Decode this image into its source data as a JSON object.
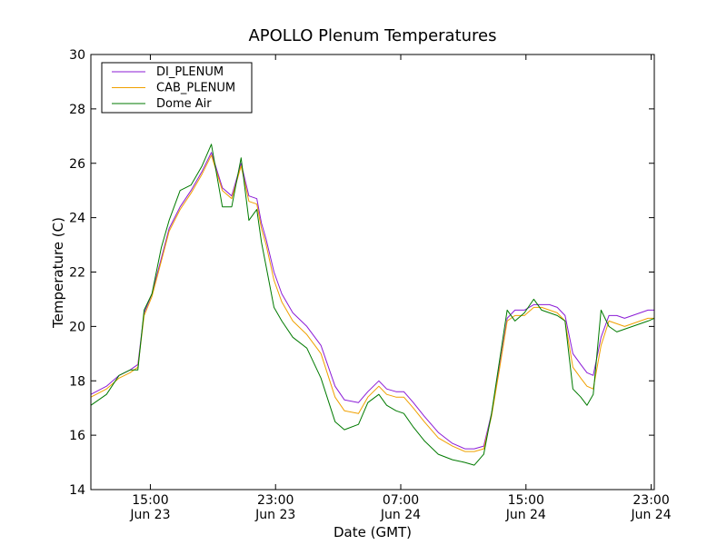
{
  "chart_data": {
    "type": "line",
    "title": "APOLLO Plenum Temperatures",
    "xlabel": "Date (GMT)",
    "ylabel": "Temperature (C)",
    "ylim": [
      14,
      30
    ],
    "xlim_hours": [
      11.2,
      47.2
    ],
    "yticks": [
      14,
      16,
      18,
      20,
      22,
      24,
      26,
      28,
      30
    ],
    "yticklabels": [
      "14",
      "16",
      "18",
      "20",
      "22",
      "24",
      "26",
      "28",
      "30"
    ],
    "xticks": [
      {
        "hour": 15,
        "time": "15:00",
        "date": "Jun 23"
      },
      {
        "hour": 23,
        "time": "23:00",
        "date": "Jun 23"
      },
      {
        "hour": 31,
        "time": "07:00",
        "date": "Jun 24"
      },
      {
        "hour": 39,
        "time": "15:00",
        "date": "Jun 24"
      },
      {
        "hour": 47,
        "time": "23:00",
        "date": "Jun 24"
      }
    ],
    "legend_position": "top-left",
    "series": [
      {
        "name": "DI_PLENUM",
        "color": "#8b1bd6",
        "x": [
          11.2,
          12.2,
          13.0,
          13.7,
          14.2,
          14.6,
          15.1,
          15.7,
          16.2,
          16.9,
          17.6,
          18.3,
          18.9,
          19.6,
          20.2,
          20.8,
          21.3,
          21.8,
          22.1,
          22.4,
          22.9,
          23.4,
          24.1,
          25.0,
          25.9,
          26.8,
          27.4,
          28.3,
          28.9,
          29.6,
          30.1,
          30.7,
          31.2,
          31.8,
          32.5,
          33.4,
          34.3,
          35.1,
          35.7,
          36.3,
          36.8,
          37.3,
          37.8,
          38.3,
          38.9,
          39.5,
          40.0,
          40.5,
          41.0,
          41.5,
          42.0,
          42.5,
          42.9,
          43.3,
          43.8,
          44.3,
          44.8,
          45.3,
          45.8,
          46.3,
          46.8,
          47.2
        ],
        "y": [
          17.5,
          17.8,
          18.2,
          18.4,
          18.6,
          20.5,
          21.2,
          22.5,
          23.6,
          24.4,
          25.0,
          25.7,
          26.4,
          25.1,
          24.8,
          26.0,
          24.8,
          24.7,
          23.8,
          23.2,
          22.0,
          21.2,
          20.5,
          20.0,
          19.3,
          17.8,
          17.3,
          17.2,
          17.6,
          18.0,
          17.7,
          17.6,
          17.6,
          17.2,
          16.7,
          16.1,
          15.7,
          15.5,
          15.5,
          15.6,
          16.8,
          18.5,
          20.3,
          20.6,
          20.6,
          20.8,
          20.8,
          20.8,
          20.7,
          20.4,
          19.0,
          18.6,
          18.3,
          18.2,
          19.6,
          20.4,
          20.4,
          20.3,
          20.4,
          20.5,
          20.6,
          20.6
        ]
      },
      {
        "name": "CAB_PLENUM",
        "color": "#f0a000",
        "x": [
          11.2,
          12.2,
          13.0,
          13.7,
          14.2,
          14.6,
          15.1,
          15.7,
          16.2,
          16.9,
          17.6,
          18.3,
          18.9,
          19.6,
          20.2,
          20.8,
          21.3,
          21.8,
          22.1,
          22.4,
          22.9,
          23.4,
          24.1,
          25.0,
          25.9,
          26.8,
          27.4,
          28.3,
          28.9,
          29.6,
          30.1,
          30.7,
          31.2,
          31.8,
          32.5,
          33.4,
          34.3,
          35.1,
          35.7,
          36.3,
          36.8,
          37.3,
          37.8,
          38.3,
          38.9,
          39.5,
          40.0,
          40.5,
          41.0,
          41.5,
          42.0,
          42.5,
          42.9,
          43.3,
          43.8,
          44.3,
          44.8,
          45.3,
          45.8,
          46.3,
          46.8,
          47.2
        ],
        "y": [
          17.4,
          17.7,
          18.1,
          18.3,
          18.5,
          20.4,
          21.1,
          22.4,
          23.5,
          24.3,
          24.9,
          25.6,
          26.3,
          25.0,
          24.7,
          25.9,
          24.6,
          24.5,
          23.6,
          23.0,
          21.7,
          20.9,
          20.2,
          19.7,
          19.0,
          17.4,
          16.9,
          16.8,
          17.4,
          17.8,
          17.5,
          17.4,
          17.4,
          17.0,
          16.5,
          15.9,
          15.6,
          15.4,
          15.4,
          15.5,
          16.7,
          18.4,
          20.2,
          20.4,
          20.4,
          20.7,
          20.7,
          20.6,
          20.5,
          20.2,
          18.5,
          18.1,
          17.8,
          17.7,
          19.3,
          20.2,
          20.1,
          20.0,
          20.1,
          20.2,
          20.3,
          20.3
        ]
      },
      {
        "name": "Dome Air",
        "color": "#007a00",
        "x": [
          11.2,
          12.2,
          13.0,
          13.7,
          14.2,
          14.6,
          15.1,
          15.7,
          16.2,
          16.9,
          17.6,
          18.3,
          18.9,
          19.6,
          20.2,
          20.8,
          21.3,
          21.8,
          22.1,
          22.4,
          22.9,
          23.4,
          24.1,
          25.0,
          25.9,
          26.8,
          27.4,
          28.3,
          28.9,
          29.6,
          30.1,
          30.7,
          31.2,
          31.8,
          32.5,
          33.4,
          34.3,
          35.1,
          35.7,
          36.3,
          36.8,
          37.3,
          37.8,
          38.3,
          38.9,
          39.5,
          40.0,
          40.5,
          41.0,
          41.5,
          42.0,
          42.5,
          42.9,
          43.3,
          43.8,
          44.3,
          44.8,
          45.3,
          45.8,
          46.3,
          46.8,
          47.2
        ],
        "y": [
          17.1,
          17.5,
          18.2,
          18.4,
          18.4,
          20.6,
          21.2,
          22.9,
          23.9,
          25.0,
          25.2,
          25.9,
          26.7,
          24.4,
          24.4,
          26.2,
          23.9,
          24.3,
          23.1,
          22.2,
          20.7,
          20.2,
          19.6,
          19.2,
          18.1,
          16.5,
          16.2,
          16.4,
          17.2,
          17.5,
          17.1,
          16.9,
          16.8,
          16.3,
          15.8,
          15.3,
          15.1,
          15.0,
          14.9,
          15.3,
          16.8,
          18.7,
          20.6,
          20.2,
          20.5,
          21.0,
          20.6,
          20.5,
          20.4,
          20.2,
          17.7,
          17.4,
          17.1,
          17.5,
          20.6,
          20.0,
          19.8,
          19.9,
          20.0,
          20.1,
          20.2,
          20.3
        ]
      }
    ]
  }
}
